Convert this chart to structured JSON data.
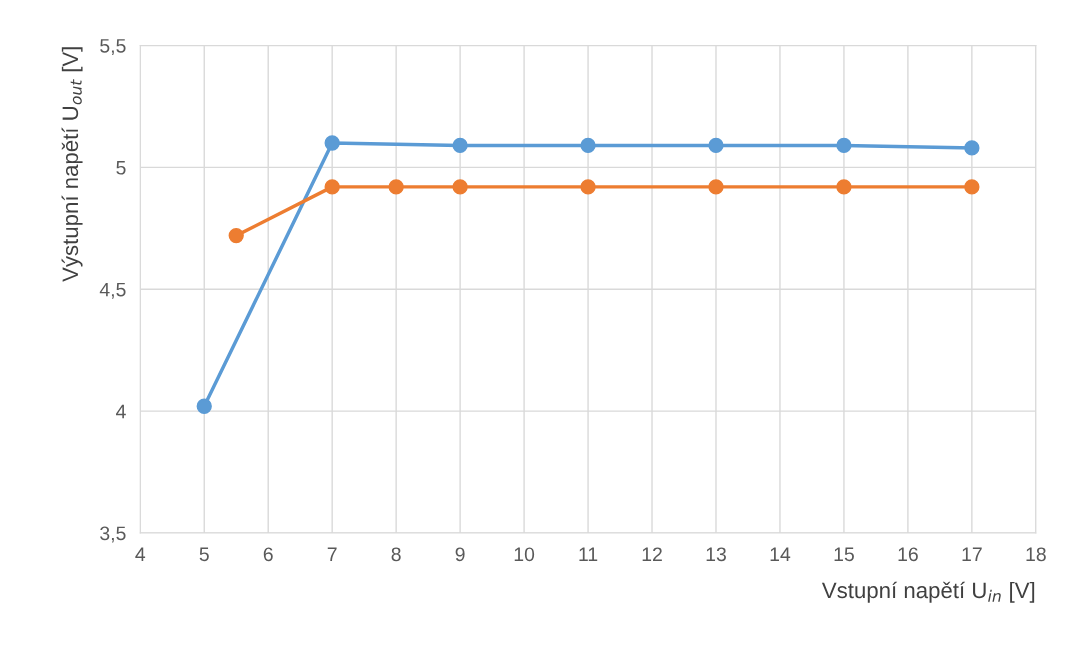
{
  "chart_data": {
    "type": "line",
    "xlabel": "Vstupní napětí U$_{in}$ [V]",
    "ylabel": "Výstupní napětí U$_{out}$ [V]",
    "series": [
      {
        "color": "#5b9bd5",
        "x": [
          5,
          7,
          9,
          11,
          13,
          15,
          17
        ],
        "values": [
          4.02,
          5.1,
          5.09,
          5.09,
          5.09,
          5.09,
          5.08
        ]
      },
      {
        "color": "#ed7d31",
        "x": [
          5.5,
          7,
          8,
          9,
          11,
          13,
          15,
          17
        ],
        "values": [
          4.72,
          4.92,
          4.92,
          4.92,
          4.92,
          4.92,
          4.92,
          4.92
        ]
      }
    ],
    "xlim": [
      4,
      18
    ],
    "xticks": [
      4,
      5,
      6,
      7,
      8,
      9,
      10,
      11,
      12,
      13,
      14,
      15,
      16,
      17,
      18
    ],
    "ylim": [
      3.5,
      5.5
    ],
    "yticks": [
      {
        "value": 3.5,
        "label": "3,5"
      },
      4,
      {
        "value": 4.5,
        "label": "4,5"
      },
      5,
      {
        "value": 5.5,
        "label": "5,5"
      }
    ],
    "grid": true,
    "marker": "circle",
    "line_style": "solid"
  }
}
